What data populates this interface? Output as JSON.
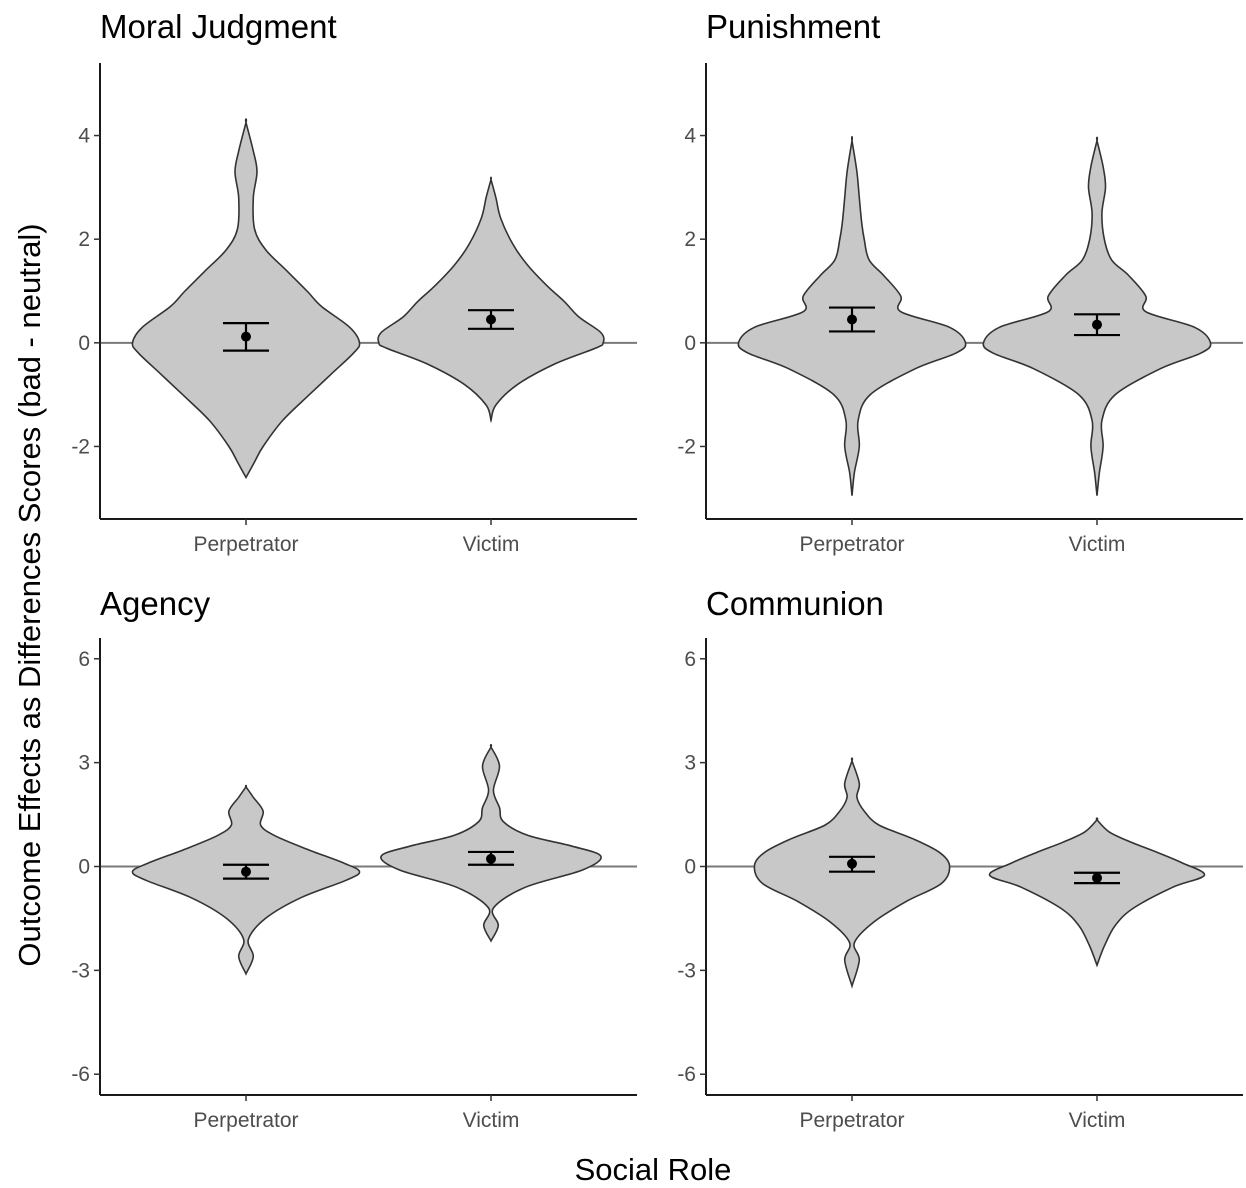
{
  "figure": {
    "xlabel": "Social Role",
    "ylabel": "Outcome Effects as Differences Scores (bad - neutral)"
  },
  "chart_data": [
    {
      "type": "violin",
      "title": "Moral Judgment",
      "categories": [
        "Perpetrator",
        "Victim"
      ],
      "ylim": [
        -3.4,
        5.4
      ],
      "yticks": [
        -2,
        0,
        2,
        4
      ],
      "reference_line_y": 0,
      "groups": [
        {
          "name": "Perpetrator",
          "mean": 0.12,
          "ci_low": -0.15,
          "ci_high": 0.38,
          "violin": [
            [
              -2.6,
              0.0
            ],
            [
              -2.3,
              0.07
            ],
            [
              -2.0,
              0.14
            ],
            [
              -1.5,
              0.3
            ],
            [
              -1.0,
              0.52
            ],
            [
              -0.6,
              0.7
            ],
            [
              -0.2,
              0.88
            ],
            [
              0.0,
              0.93
            ],
            [
              0.3,
              0.85
            ],
            [
              0.7,
              0.62
            ],
            [
              1.0,
              0.5
            ],
            [
              1.4,
              0.33
            ],
            [
              1.8,
              0.16
            ],
            [
              2.2,
              0.07
            ],
            [
              2.8,
              0.06
            ],
            [
              3.3,
              0.09
            ],
            [
              3.7,
              0.06
            ],
            [
              4.25,
              0.0
            ]
          ]
        },
        {
          "name": "Victim",
          "mean": 0.45,
          "ci_low": 0.27,
          "ci_high": 0.63,
          "violin": [
            [
              -1.5,
              0.0
            ],
            [
              -1.2,
              0.04
            ],
            [
              -0.8,
              0.22
            ],
            [
              -0.4,
              0.53
            ],
            [
              -0.1,
              0.86
            ],
            [
              0.0,
              0.92
            ],
            [
              0.2,
              0.9
            ],
            [
              0.5,
              0.72
            ],
            [
              0.8,
              0.6
            ],
            [
              1.1,
              0.46
            ],
            [
              1.5,
              0.3
            ],
            [
              1.9,
              0.18
            ],
            [
              2.4,
              0.08
            ],
            [
              2.8,
              0.04
            ],
            [
              3.15,
              0.0
            ]
          ]
        }
      ]
    },
    {
      "type": "violin",
      "title": "Punishment",
      "categories": [
        "Perpetrator",
        "Victim"
      ],
      "ylim": [
        -3.4,
        5.4
      ],
      "yticks": [
        -2,
        0,
        2,
        4
      ],
      "reference_line_y": 0,
      "groups": [
        {
          "name": "Perpetrator",
          "mean": 0.45,
          "ci_low": 0.22,
          "ci_high": 0.68,
          "violin": [
            [
              -2.95,
              0.0
            ],
            [
              -2.5,
              0.02
            ],
            [
              -2.0,
              0.06
            ],
            [
              -1.5,
              0.05
            ],
            [
              -1.0,
              0.15
            ],
            [
              -0.5,
              0.52
            ],
            [
              -0.2,
              0.85
            ],
            [
              0.0,
              0.93
            ],
            [
              0.3,
              0.8
            ],
            [
              0.6,
              0.4
            ],
            [
              0.9,
              0.4
            ],
            [
              1.3,
              0.26
            ],
            [
              1.6,
              0.14
            ],
            [
              2.0,
              0.1
            ],
            [
              2.3,
              0.08
            ],
            [
              2.8,
              0.06
            ],
            [
              3.3,
              0.04
            ],
            [
              3.9,
              0.0
            ]
          ]
        },
        {
          "name": "Victim",
          "mean": 0.35,
          "ci_low": 0.15,
          "ci_high": 0.55,
          "violin": [
            [
              -2.95,
              0.0
            ],
            [
              -2.5,
              0.02
            ],
            [
              -2.0,
              0.05
            ],
            [
              -1.5,
              0.04
            ],
            [
              -1.0,
              0.15
            ],
            [
              -0.5,
              0.52
            ],
            [
              -0.2,
              0.85
            ],
            [
              0.0,
              0.93
            ],
            [
              0.3,
              0.8
            ],
            [
              0.6,
              0.4
            ],
            [
              0.9,
              0.4
            ],
            [
              1.3,
              0.26
            ],
            [
              1.6,
              0.12
            ],
            [
              2.0,
              0.06
            ],
            [
              2.5,
              0.04
            ],
            [
              3.0,
              0.07
            ],
            [
              3.4,
              0.05
            ],
            [
              3.9,
              0.0
            ]
          ]
        }
      ]
    },
    {
      "type": "violin",
      "title": "Agency",
      "categories": [
        "Perpetrator",
        "Victim"
      ],
      "ylim": [
        -6.6,
        6.6
      ],
      "yticks": [
        -6,
        -3,
        0,
        3,
        6
      ],
      "reference_line_y": 0,
      "groups": [
        {
          "name": "Perpetrator",
          "mean": -0.15,
          "ci_low": -0.35,
          "ci_high": 0.05,
          "violin": [
            [
              -3.1,
              0.0
            ],
            [
              -2.6,
              0.06
            ],
            [
              -2.1,
              0.02
            ],
            [
              -1.5,
              0.16
            ],
            [
              -0.9,
              0.45
            ],
            [
              -0.4,
              0.82
            ],
            [
              -0.15,
              0.93
            ],
            [
              0.1,
              0.8
            ],
            [
              0.5,
              0.5
            ],
            [
              0.9,
              0.23
            ],
            [
              1.2,
              0.12
            ],
            [
              1.6,
              0.14
            ],
            [
              2.0,
              0.06
            ],
            [
              2.3,
              0.0
            ]
          ]
        },
        {
          "name": "Victim",
          "mean": 0.22,
          "ci_low": 0.05,
          "ci_high": 0.42,
          "violin": [
            [
              -2.15,
              0.0
            ],
            [
              -1.7,
              0.06
            ],
            [
              -1.2,
              0.02
            ],
            [
              -0.6,
              0.28
            ],
            [
              -0.1,
              0.75
            ],
            [
              0.3,
              0.9
            ],
            [
              0.6,
              0.65
            ],
            [
              0.9,
              0.3
            ],
            [
              1.3,
              0.1
            ],
            [
              1.7,
              0.07
            ],
            [
              2.2,
              0.02
            ],
            [
              2.9,
              0.07
            ],
            [
              3.45,
              0.0
            ]
          ]
        }
      ]
    },
    {
      "type": "violin",
      "title": "Communion",
      "categories": [
        "Perpetrator",
        "Victim"
      ],
      "ylim": [
        -6.6,
        6.6
      ],
      "yticks": [
        -6,
        -3,
        0,
        3,
        6
      ],
      "reference_line_y": 0,
      "groups": [
        {
          "name": "Perpetrator",
          "mean": 0.08,
          "ci_low": -0.15,
          "ci_high": 0.28,
          "violin": [
            [
              -3.45,
              0.0
            ],
            [
              -2.7,
              0.06
            ],
            [
              -2.2,
              0.02
            ],
            [
              -1.6,
              0.18
            ],
            [
              -1.0,
              0.45
            ],
            [
              -0.5,
              0.73
            ],
            [
              0.0,
              0.8
            ],
            [
              0.4,
              0.72
            ],
            [
              0.8,
              0.5
            ],
            [
              1.2,
              0.22
            ],
            [
              1.6,
              0.1
            ],
            [
              2.0,
              0.04
            ],
            [
              2.4,
              0.06
            ],
            [
              3.05,
              0.0
            ]
          ]
        },
        {
          "name": "Victim",
          "mean": -0.33,
          "ci_low": -0.48,
          "ci_high": -0.18,
          "violin": [
            [
              -2.85,
              0.0
            ],
            [
              -2.3,
              0.06
            ],
            [
              -1.7,
              0.15
            ],
            [
              -1.2,
              0.3
            ],
            [
              -0.6,
              0.62
            ],
            [
              -0.25,
              0.88
            ],
            [
              0.1,
              0.7
            ],
            [
              0.4,
              0.5
            ],
            [
              0.7,
              0.28
            ],
            [
              1.0,
              0.1
            ],
            [
              1.35,
              0.0
            ]
          ]
        }
      ]
    }
  ]
}
